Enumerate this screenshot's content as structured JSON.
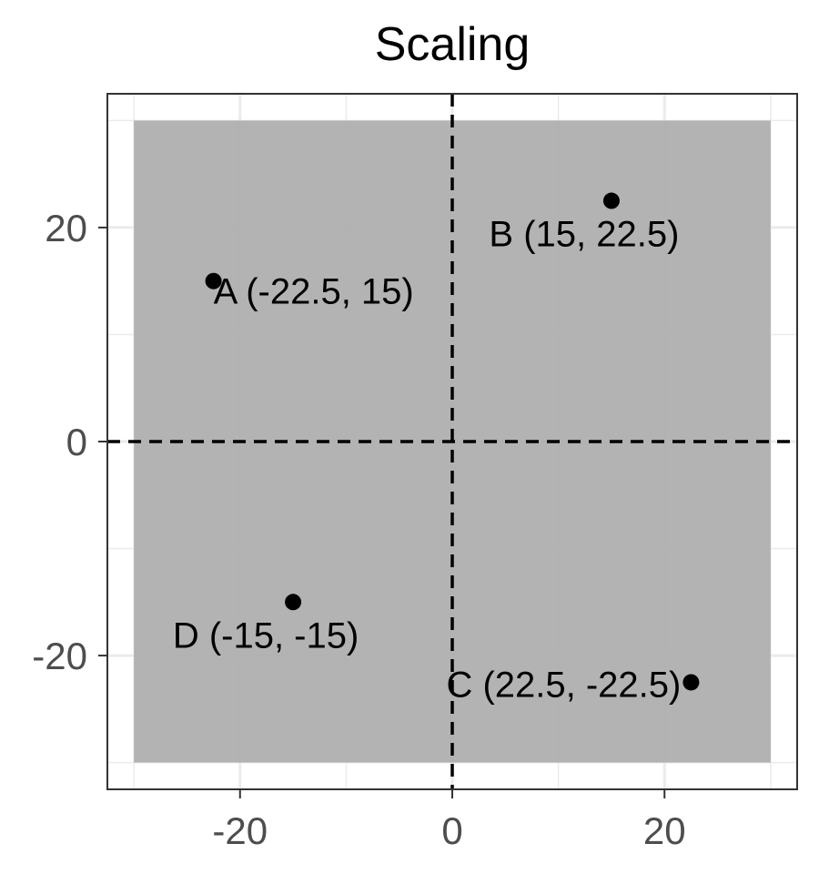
{
  "chart_data": {
    "type": "scatter",
    "title": "Scaling",
    "xlabel": "",
    "ylabel": "",
    "xlim": [
      -32.5,
      32.5
    ],
    "ylim": [
      -32.5,
      32.5
    ],
    "x_ticks": [
      -20,
      0,
      20
    ],
    "y_ticks": [
      -20,
      0,
      20
    ],
    "x_tick_labels": [
      "-20",
      "0",
      "20"
    ],
    "y_tick_labels": [
      "-20",
      "0",
      "20"
    ],
    "grid": true,
    "legend": "none",
    "rectangle": {
      "xmin": -30,
      "xmax": 30,
      "ymin": -30,
      "ymax": 30,
      "fill": "#adadad"
    },
    "reference_lines": {
      "x": 0,
      "y": 0,
      "style": "dashed",
      "color": "#000000"
    },
    "points": [
      {
        "id": "A",
        "x": -22.5,
        "y": 15,
        "label": "A (-22.5, 15)"
      },
      {
        "id": "B",
        "x": 15,
        "y": 22.5,
        "label": "B (15, 22.5)"
      },
      {
        "id": "C",
        "x": 22.5,
        "y": -22.5,
        "label": "C (22.5, -22.5)"
      },
      {
        "id": "D",
        "x": -15,
        "y": -15,
        "label": "D (-15, -15)"
      }
    ],
    "colors": {
      "points": "#000000",
      "panel_border": "#333333",
      "grid": "#ebebeb"
    }
  }
}
